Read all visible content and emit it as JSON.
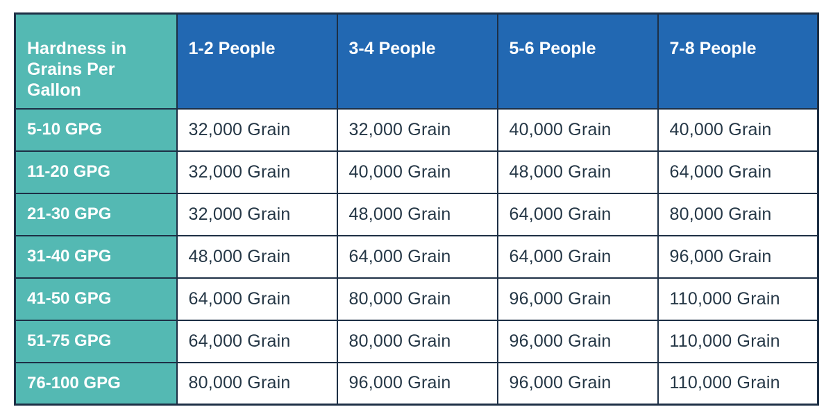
{
  "colors": {
    "teal_header": "#54b9b3",
    "blue_header": "#2268b2",
    "border": "#1d2f45",
    "data_text": "#253746",
    "header_text": "#ffffff",
    "cell_background": "#ffffff"
  },
  "chart_data": {
    "type": "table",
    "row_header": "Hardness in Grains Per Gallon",
    "columns": [
      "1-2 People",
      "3-4 People",
      "5-6 People",
      "7-8 People"
    ],
    "rows": [
      {
        "label": "5-10 GPG",
        "values": [
          "32,000 Grain",
          "32,000 Grain",
          "40,000 Grain",
          "40,000 Grain"
        ]
      },
      {
        "label": "11-20 GPG",
        "values": [
          "32,000 Grain",
          "40,000 Grain",
          "48,000 Grain",
          "64,000 Grain"
        ]
      },
      {
        "label": "21-30 GPG",
        "values": [
          "32,000 Grain",
          "48,000 Grain",
          "64,000 Grain",
          "80,000 Grain"
        ]
      },
      {
        "label": "31-40 GPG",
        "values": [
          "48,000 Grain",
          "64,000 Grain",
          "64,000 Grain",
          "96,000 Grain"
        ]
      },
      {
        "label": "41-50 GPG",
        "values": [
          "64,000 Grain",
          "80,000 Grain",
          "96,000 Grain",
          "110,000 Grain"
        ]
      },
      {
        "label": "51-75 GPG",
        "values": [
          "64,000 Grain",
          "80,000 Grain",
          "96,000 Grain",
          "110,000 Grain"
        ]
      },
      {
        "label": "76-100 GPG",
        "values": [
          "80,000 Grain",
          "96,000 Grain",
          "96,000 Grain",
          "110,000 Grain"
        ]
      }
    ],
    "values_numeric_grains": [
      [
        32000,
        32000,
        40000,
        40000
      ],
      [
        32000,
        40000,
        48000,
        64000
      ],
      [
        32000,
        48000,
        64000,
        80000
      ],
      [
        48000,
        64000,
        64000,
        96000
      ],
      [
        64000,
        80000,
        96000,
        110000
      ],
      [
        64000,
        80000,
        96000,
        110000
      ],
      [
        80000,
        96000,
        96000,
        110000
      ]
    ],
    "legend_position": "none",
    "grid": true
  }
}
